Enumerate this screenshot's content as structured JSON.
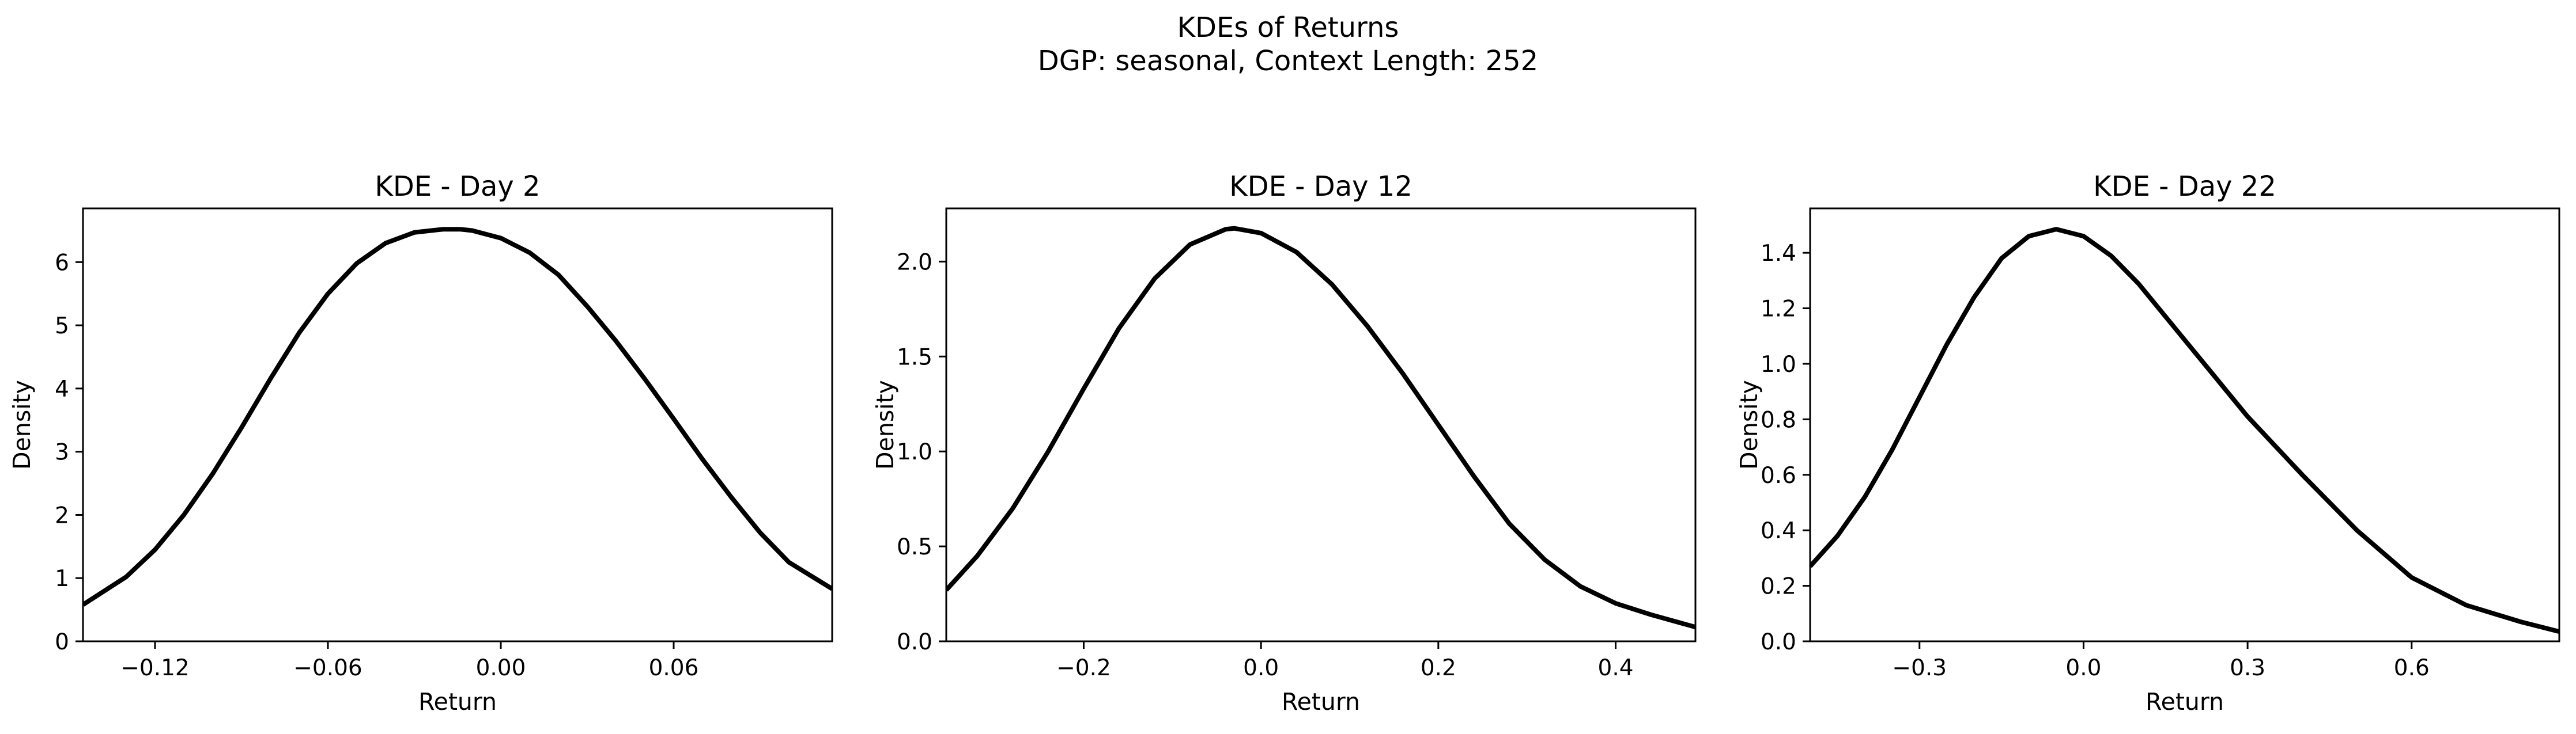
{
  "figure": {
    "title_line1": "KDEs of Returns",
    "title_line2": "DGP: seasonal, Context Length: 252"
  },
  "chart_data": [
    {
      "type": "line",
      "title": "KDE - Day 2",
      "xlabel": "Return",
      "ylabel": "Density",
      "xlim": [
        -0.145,
        0.115
      ],
      "ylim": [
        0,
        6.85
      ],
      "xticks": [
        -0.12,
        -0.06,
        0.0,
        0.06
      ],
      "xtick_labels": [
        "−0.12",
        "−0.06",
        "0.00",
        "0.06"
      ],
      "yticks": [
        0,
        1,
        2,
        3,
        4,
        5,
        6
      ],
      "ytick_labels": [
        "0",
        "1",
        "2",
        "3",
        "4",
        "5",
        "6"
      ],
      "grid": false,
      "color": "#000000",
      "x": [
        -0.145,
        -0.13,
        -0.12,
        -0.11,
        -0.1,
        -0.09,
        -0.08,
        -0.07,
        -0.06,
        -0.05,
        -0.04,
        -0.03,
        -0.02,
        -0.014,
        -0.01,
        0.0,
        0.01,
        0.02,
        0.03,
        0.04,
        0.05,
        0.06,
        0.07,
        0.08,
        0.09,
        0.1,
        0.115
      ],
      "y": [
        0.58,
        1.02,
        1.45,
        2.0,
        2.65,
        3.38,
        4.15,
        4.88,
        5.5,
        5.98,
        6.3,
        6.47,
        6.52,
        6.52,
        6.5,
        6.38,
        6.15,
        5.8,
        5.3,
        4.75,
        4.15,
        3.52,
        2.88,
        2.28,
        1.72,
        1.25,
        0.83
      ]
    },
    {
      "type": "line",
      "title": "KDE - Day 12",
      "xlabel": "Return",
      "ylabel": "Density",
      "xlim": [
        -0.355,
        0.49
      ],
      "ylim": [
        0,
        2.28
      ],
      "xticks": [
        -0.2,
        0.0,
        0.2,
        0.4
      ],
      "xtick_labels": [
        "−0.2",
        "0.0",
        "0.2",
        "0.4"
      ],
      "yticks": [
        0.0,
        0.5,
        1.0,
        1.5,
        2.0
      ],
      "ytick_labels": [
        "0.0",
        "0.5",
        "1.0",
        "1.5",
        "2.0"
      ],
      "grid": false,
      "color": "#000000",
      "x": [
        -0.355,
        -0.32,
        -0.28,
        -0.24,
        -0.2,
        -0.16,
        -0.12,
        -0.08,
        -0.04,
        -0.03,
        0.0,
        0.04,
        0.08,
        0.12,
        0.16,
        0.2,
        0.24,
        0.28,
        0.32,
        0.36,
        0.4,
        0.44,
        0.49
      ],
      "y": [
        0.27,
        0.45,
        0.7,
        1.0,
        1.33,
        1.65,
        1.91,
        2.09,
        2.17,
        2.175,
        2.15,
        2.05,
        1.88,
        1.66,
        1.41,
        1.14,
        0.87,
        0.62,
        0.43,
        0.29,
        0.2,
        0.14,
        0.075
      ]
    },
    {
      "type": "line",
      "title": "KDE - Day 22",
      "xlabel": "Return",
      "ylabel": "Density",
      "xlim": [
        -0.5,
        0.87
      ],
      "ylim": [
        0,
        1.56
      ],
      "xticks": [
        -0.3,
        0.0,
        0.3,
        0.6
      ],
      "xtick_labels": [
        "−0.3",
        "0.0",
        "0.3",
        "0.6"
      ],
      "yticks": [
        0.0,
        0.2,
        0.4,
        0.6,
        0.8,
        1.0,
        1.2,
        1.4
      ],
      "ytick_labels": [
        "0.0",
        "0.2",
        "0.4",
        "0.6",
        "0.8",
        "1.0",
        "1.2",
        "1.4"
      ],
      "grid": false,
      "color": "#000000",
      "x": [
        -0.5,
        -0.45,
        -0.4,
        -0.35,
        -0.3,
        -0.25,
        -0.2,
        -0.15,
        -0.1,
        -0.05,
        0.0,
        0.05,
        0.1,
        0.15,
        0.2,
        0.3,
        0.4,
        0.5,
        0.6,
        0.7,
        0.8,
        0.87
      ],
      "y": [
        0.27,
        0.38,
        0.52,
        0.69,
        0.88,
        1.07,
        1.24,
        1.38,
        1.46,
        1.485,
        1.46,
        1.39,
        1.29,
        1.17,
        1.05,
        0.81,
        0.6,
        0.4,
        0.23,
        0.13,
        0.07,
        0.035
      ]
    }
  ]
}
